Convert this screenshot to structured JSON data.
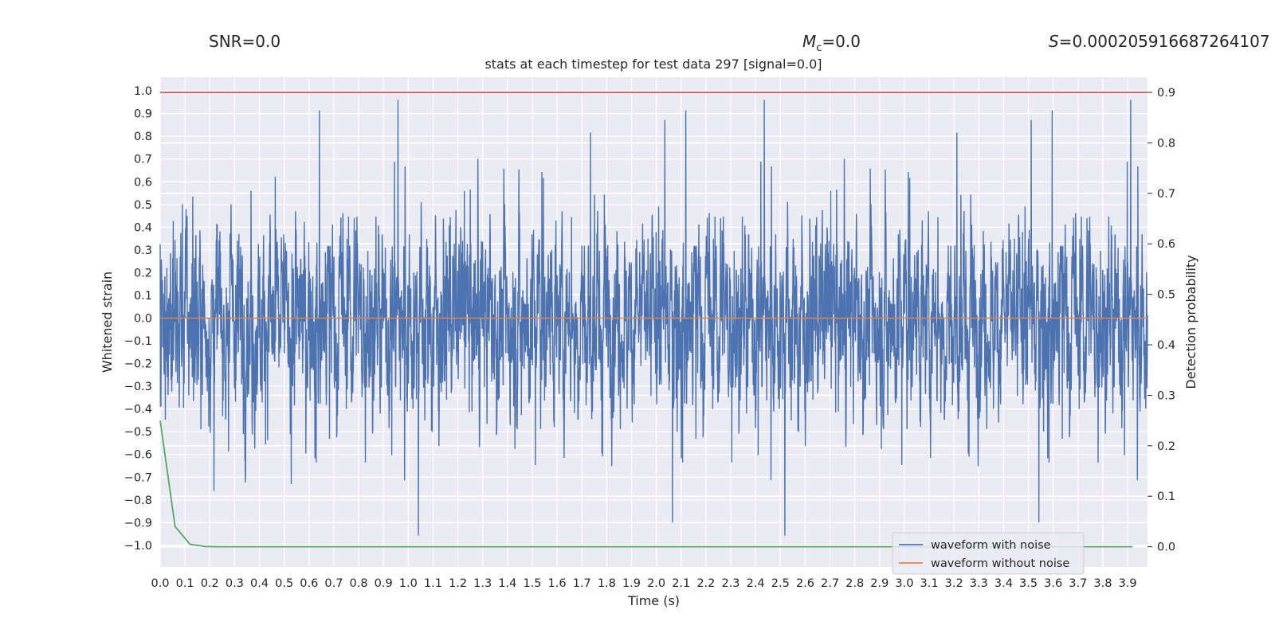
{
  "chart_data": {
    "type": "line",
    "title": "stats at each timestep for test data 297 [signal=0.0]",
    "header": {
      "snr_label": "SNR=0.0",
      "mc_symbol": "M",
      "mc_sub": "c",
      "mc_value": "=0.0",
      "s_symbol": "S",
      "s_value": "=0.000205916687264107"
    },
    "xlabel": "Time (s)",
    "ylabel": "Whitened strain",
    "y2label": "Detection probability",
    "xlim": [
      0.0,
      3.98
    ],
    "ylim": [
      -1.095,
      1.06
    ],
    "y2lim": [
      -0.04,
      0.93
    ],
    "x_ticks": [
      "0.0",
      "0.1",
      "0.2",
      "0.3",
      "0.4",
      "0.5",
      "0.6",
      "0.7",
      "0.8",
      "0.9",
      "1.0",
      "1.1",
      "1.2",
      "1.3",
      "1.4",
      "1.5",
      "1.6",
      "1.7",
      "1.8",
      "1.9",
      "2.0",
      "2.1",
      "2.2",
      "2.3",
      "2.4",
      "2.5",
      "2.6",
      "2.7",
      "2.8",
      "2.9",
      "3.0",
      "3.1",
      "3.2",
      "3.3",
      "3.4",
      "3.5",
      "3.6",
      "3.7",
      "3.8",
      "3.9"
    ],
    "y_ticks": [
      "1.0",
      "0.9",
      "0.8",
      "0.7",
      "0.6",
      "0.5",
      "0.4",
      "0.3",
      "0.2",
      "0.1",
      "0.0",
      "-0.1",
      "-0.2",
      "-0.3",
      "-0.4",
      "-0.5",
      "-0.6",
      "-0.7",
      "-0.8",
      "-0.9",
      "-1.0"
    ],
    "y2_ticks": [
      "0.9",
      "0.8",
      "0.7",
      "0.6",
      "0.5",
      "0.4",
      "0.3",
      "0.2",
      "0.1",
      "0.0"
    ],
    "threshold": 0.9,
    "series": [
      {
        "name": "waveform with noise",
        "color": "#4c72b0",
        "kind": "noise",
        "duration": 3.98,
        "samples": 4000,
        "typical_amplitude": 0.3,
        "max": 0.96,
        "min": -1.0
      },
      {
        "name": "waveform without noise",
        "color": "#dd8452",
        "kind": "flat",
        "value": 0.0
      },
      {
        "name": "detection probability",
        "color": "#55a868",
        "axis": "right",
        "x": [
          0.0,
          0.06,
          0.12,
          0.18,
          0.24,
          0.3,
          0.5,
          1.0,
          2.0,
          3.0,
          3.92
        ],
        "y": [
          0.25,
          0.04,
          0.005,
          0.0005,
          0.0,
          0.0,
          0.0,
          0.0,
          0.0,
          0.0,
          0.0
        ]
      },
      {
        "name": "threshold",
        "color": "#c44e52",
        "axis": "right",
        "x": [
          0.0,
          3.98
        ],
        "y": [
          0.9,
          0.9
        ]
      }
    ],
    "legend": {
      "position": "bottom-right",
      "entries": [
        "waveform with noise",
        "waveform without noise"
      ]
    },
    "colors": {
      "background": "#eaeaf2",
      "grid": "#ffffff"
    }
  }
}
